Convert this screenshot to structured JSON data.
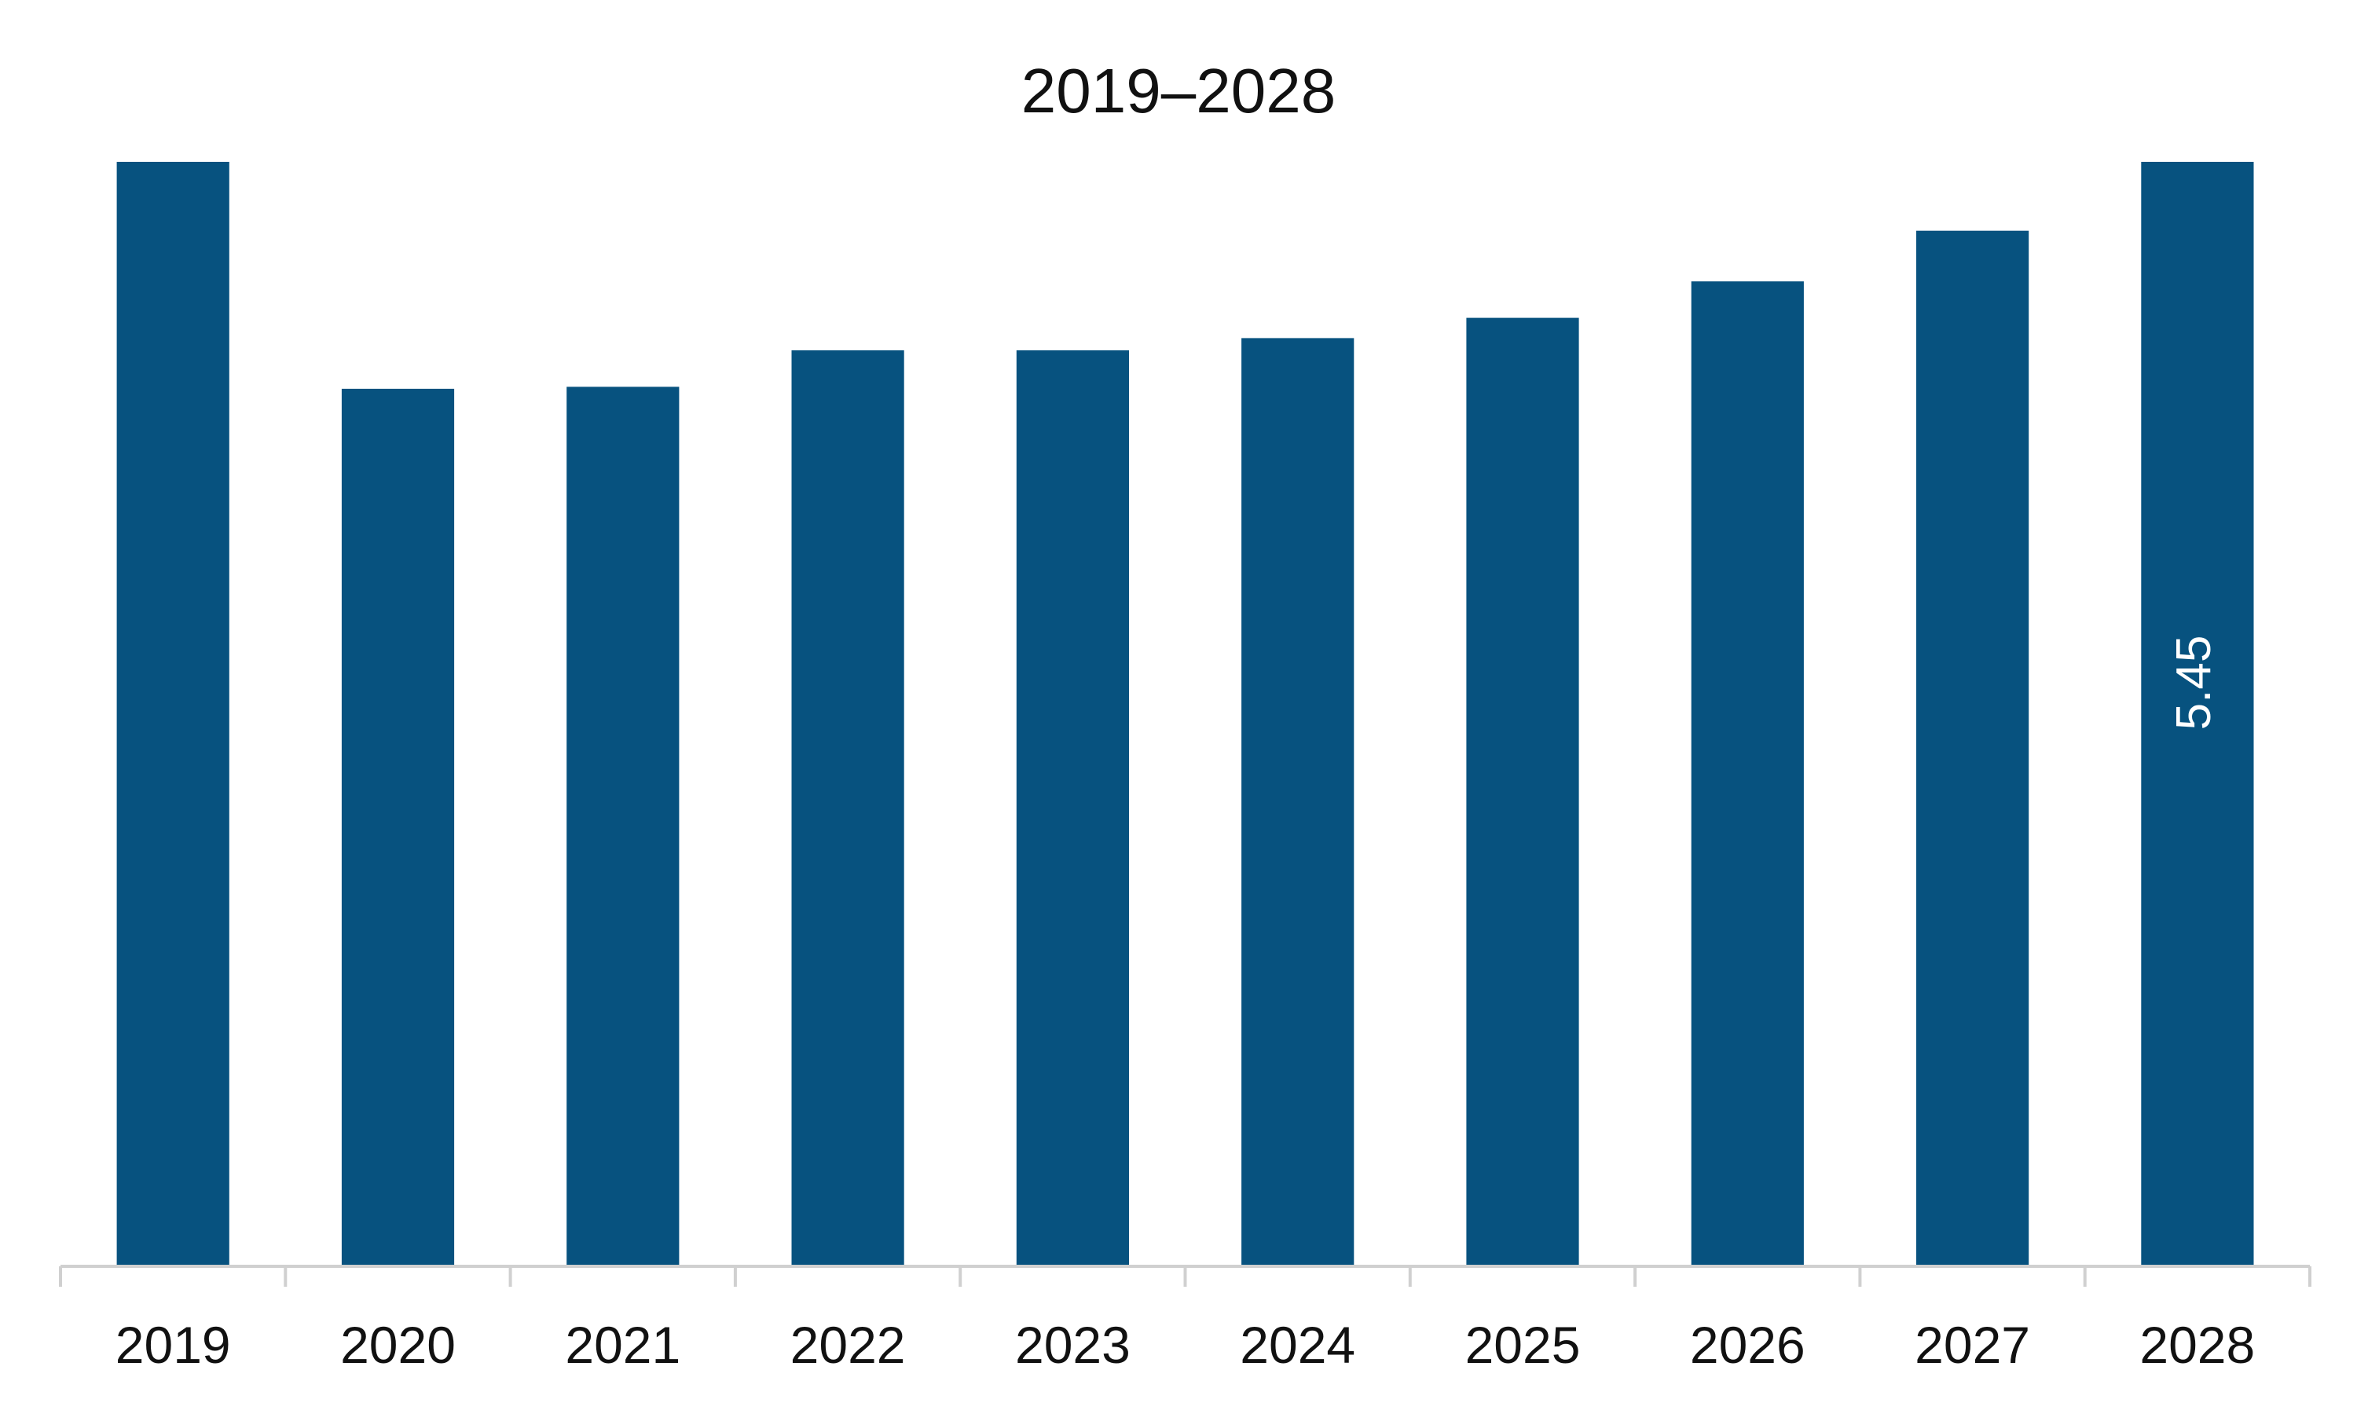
{
  "chart_data": {
    "type": "bar",
    "title": "2019–2028",
    "categories": [
      "2019",
      "2020",
      "2021",
      "2022",
      "2023",
      "2024",
      "2025",
      "2026",
      "2027",
      "2028"
    ],
    "series": [
      {
        "values": [
          5.45,
          4.33,
          4.34,
          4.52,
          4.52,
          4.58,
          4.68,
          4.86,
          5.11,
          5.45
        ]
      }
    ],
    "data_labels": [
      null,
      null,
      null,
      null,
      null,
      null,
      null,
      null,
      null,
      "5.45"
    ],
    "ylim": [
      0,
      5.45
    ],
    "grid": false,
    "legend": "none",
    "bar_color": "#07527F",
    "axis_color": "#D0D0D0",
    "label_color": "#FFFFFF",
    "text_color": "#111111"
  }
}
